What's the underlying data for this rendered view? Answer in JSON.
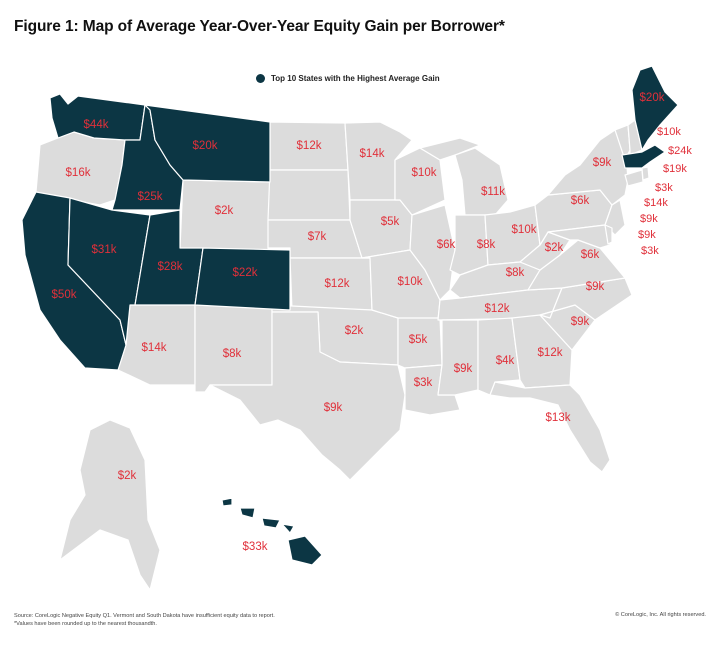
{
  "title": "Figure 1: Map of Average Year-Over-Year Equity Gain per Borrower*",
  "legend": {
    "label": "Top 10 States with the Highest Average Gain",
    "color": "#0c3644"
  },
  "colors": {
    "highlight": "#0c3644",
    "base": "#dcdcdc",
    "label_on_base": "#e0303a",
    "label_on_highlight": "#e0303a"
  },
  "states": {
    "WA": "$44k",
    "OR": "$16k",
    "CA": "$50k",
    "NV": "$31k",
    "ID": "$25k",
    "MT": "$20k",
    "WY": "$2k",
    "UT": "$28k",
    "CO": "$22k",
    "AZ": "$14k",
    "NM": "$8k",
    "ND": "$12k",
    "SD": "",
    "NE": "$7k",
    "KS": "$12k",
    "OK": "$2k",
    "TX": "$9k",
    "MN": "$14k",
    "IA": "$5k",
    "MO": "$10k",
    "AR": "$5k",
    "LA": "$3k",
    "WI": "$10k",
    "IL": "$6k",
    "MI": "$11k",
    "IN": "$8k",
    "OH": "$10k",
    "KY": "$8k",
    "TN": "$12k",
    "MS": "$9k",
    "AL": "$4k",
    "GA": "$12k",
    "FL": "$13k",
    "SC": "$9k",
    "NC": "$9k",
    "VA": "$6k",
    "WV": "$2k",
    "PA": "$6k",
    "NY": "$9k",
    "VT": "",
    "ME": "$20k",
    "NH": "$10k",
    "MA": "$24k",
    "RI": "$19k",
    "CT": "$3k",
    "NJ": "$14k",
    "DE": "$9k",
    "MD": "$9k",
    "DC": "$3k",
    "AK": "$2k",
    "HI": "$33k"
  },
  "footer": {
    "source": "Source: CoreLogic Negative Equity Q1. Vermont and South Dakota have insufficient equity data to report.",
    "note": "*Values have been rounded up to the nearest thousandth.",
    "copyright": "© CoreLogic, Inc. All rights reserved."
  }
}
